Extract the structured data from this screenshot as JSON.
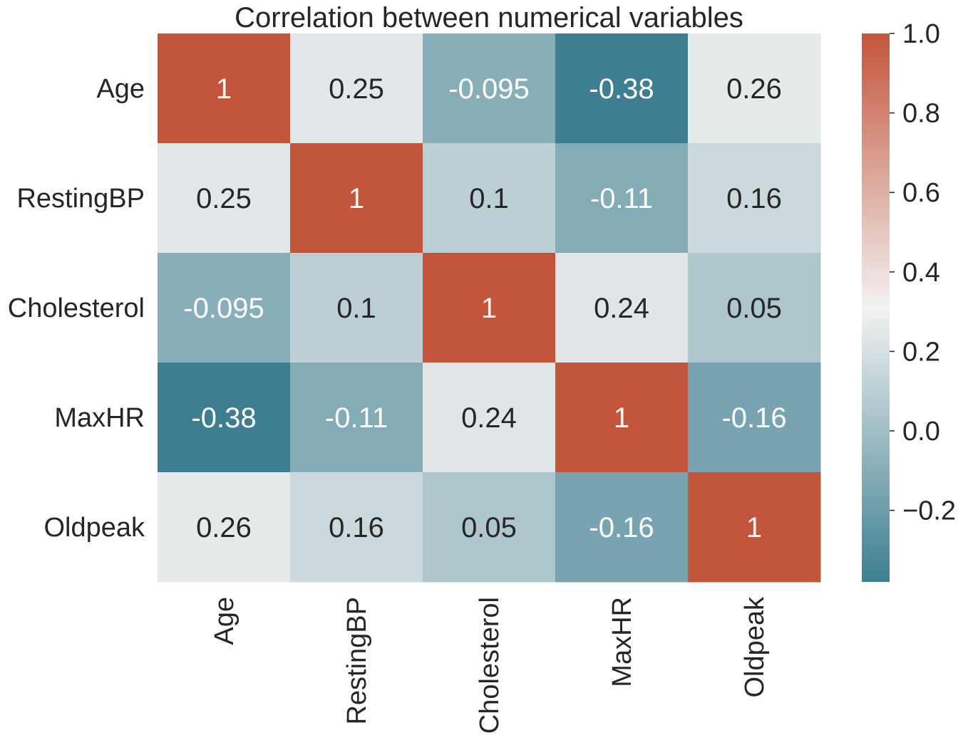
{
  "chart_data": {
    "type": "heatmap",
    "title": "Correlation between numerical variables",
    "x_labels": [
      "Age",
      "RestingBP",
      "Cholesterol",
      "MaxHR",
      "Oldpeak"
    ],
    "y_labels": [
      "Age",
      "RestingBP",
      "Cholesterol",
      "MaxHR",
      "Oldpeak"
    ],
    "values": [
      [
        1,
        0.25,
        -0.095,
        -0.38,
        0.26
      ],
      [
        0.25,
        1,
        0.1,
        -0.11,
        0.16
      ],
      [
        -0.095,
        0.1,
        1,
        0.24,
        0.05
      ],
      [
        -0.38,
        -0.11,
        0.24,
        1,
        -0.16
      ],
      [
        0.26,
        0.16,
        0.05,
        -0.16,
        1
      ]
    ],
    "annotations": [
      [
        "1",
        "0.25",
        "-0.095",
        "-0.38",
        "0.26"
      ],
      [
        "0.25",
        "1",
        "0.1",
        "-0.11",
        "0.16"
      ],
      [
        "-0.095",
        "0.1",
        "1",
        "0.24",
        "0.05"
      ],
      [
        "-0.38",
        "-0.11",
        "0.24",
        "1",
        "-0.16"
      ],
      [
        "0.26",
        "0.16",
        "0.05",
        "-0.16",
        "1"
      ]
    ],
    "colorbar": {
      "vmin": -0.38,
      "vmax": 1.0,
      "ticks": [
        1.0,
        0.8,
        0.6,
        0.4,
        0.2,
        0.0,
        -0.2
      ],
      "tick_labels": [
        "1.0",
        "0.8",
        "0.6",
        "0.4",
        "0.2",
        "0.0",
        "−0.2"
      ]
    },
    "colors": {
      "low": "#3d7f91",
      "mid": "#f2f2f2",
      "high": "#c3553a",
      "text_dark": "#262626",
      "text_light": "#ffffff"
    }
  }
}
